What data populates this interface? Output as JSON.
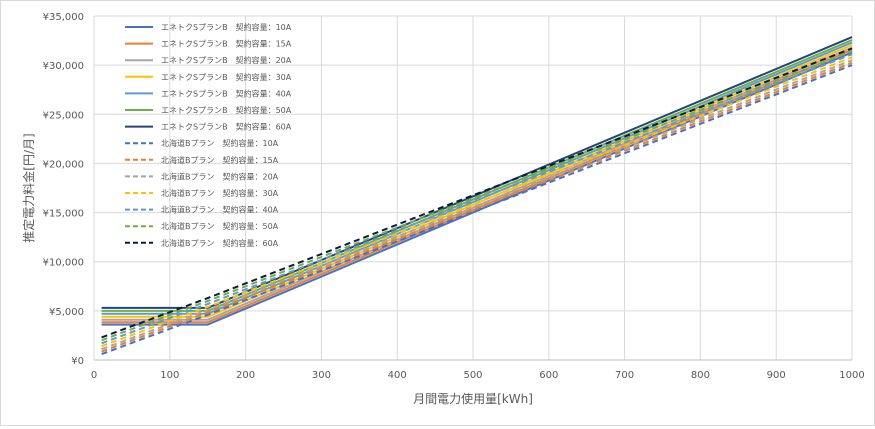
{
  "chart_data": {
    "type": "line",
    "title": "",
    "xlabel": "月間電力使用量[kWh]",
    "ylabel": "推定電力料金[円/月]",
    "xlim": [
      0,
      1000
    ],
    "ylim": [
      0,
      35000
    ],
    "x_ticks": [
      0,
      100,
      200,
      300,
      400,
      500,
      600,
      700,
      800,
      900,
      1000
    ],
    "y_ticks": [
      0,
      5000,
      10000,
      15000,
      20000,
      25000,
      30000,
      35000
    ],
    "x_tick_labels": [
      "0",
      "100",
      "200",
      "300",
      "400",
      "500",
      "600",
      "700",
      "800",
      "900",
      "1000"
    ],
    "y_tick_labels": [
      "¥0",
      "¥5,000",
      "¥10,000",
      "¥15,000",
      "¥20,000",
      "¥25,000",
      "¥30,000",
      "¥35,000"
    ],
    "grid": true,
    "legend_position": "top-left",
    "series": [
      {
        "name": "エネトクSプランB　契約容量：10A",
        "color": "#4472c4",
        "dash": false,
        "points": [
          [
            10,
            3600
          ],
          [
            150,
            3600
          ],
          [
            1000,
            31300
          ]
        ]
      },
      {
        "name": "エネトクSプランB　契約容量：15A",
        "color": "#ed7d31",
        "dash": false,
        "points": [
          [
            10,
            3850
          ],
          [
            150,
            3850
          ],
          [
            1000,
            31550
          ]
        ]
      },
      {
        "name": "エネトクSプランB　契約容量：20A",
        "color": "#a5a5a5",
        "dash": false,
        "points": [
          [
            10,
            4100
          ],
          [
            150,
            4100
          ],
          [
            1000,
            31800
          ]
        ]
      },
      {
        "name": "エネトクSプランB　契約容量：30A",
        "color": "#ffc000",
        "dash": false,
        "points": [
          [
            10,
            4400
          ],
          [
            150,
            4400
          ],
          [
            1000,
            32050
          ]
        ]
      },
      {
        "name": "エネトクSプランB　契約容量：40A",
        "color": "#5b9bd5",
        "dash": false,
        "points": [
          [
            10,
            4700
          ],
          [
            150,
            4700
          ],
          [
            1000,
            32300
          ]
        ]
      },
      {
        "name": "エネトクSプランB　契約容量：50A",
        "color": "#70ad47",
        "dash": false,
        "points": [
          [
            10,
            5000
          ],
          [
            150,
            5000
          ],
          [
            1000,
            32550
          ]
        ]
      },
      {
        "name": "エネトクSプランB　契約容量：60A",
        "color": "#264478",
        "dash": false,
        "points": [
          [
            10,
            5300
          ],
          [
            150,
            5300
          ],
          [
            1000,
            32850
          ]
        ]
      },
      {
        "name": "北海道Bプラン　契約容量：10A",
        "color": "#4472c4",
        "dash": true,
        "points": [
          [
            10,
            600
          ],
          [
            150,
            4600
          ],
          [
            1000,
            30000
          ]
        ]
      },
      {
        "name": "北海道Bプラン　契約容量：15A",
        "color": "#ed7d31",
        "dash": true,
        "points": [
          [
            10,
            850
          ],
          [
            150,
            4850
          ],
          [
            1000,
            30250
          ]
        ]
      },
      {
        "name": "北海道Bプラン　契約容量：20A",
        "color": "#a5a5a5",
        "dash": true,
        "points": [
          [
            10,
            1100
          ],
          [
            150,
            5100
          ],
          [
            1000,
            30500
          ]
        ]
      },
      {
        "name": "北海道Bプラン　契約容量：30A",
        "color": "#ffc000",
        "dash": true,
        "points": [
          [
            10,
            1400
          ],
          [
            150,
            5400
          ],
          [
            1000,
            30800
          ]
        ]
      },
      {
        "name": "北海道Bプラン　契約容量：40A",
        "color": "#5b9bd5",
        "dash": true,
        "points": [
          [
            10,
            1700
          ],
          [
            150,
            5700
          ],
          [
            1000,
            31100
          ]
        ]
      },
      {
        "name": "北海道Bプラン　契約容量：50A",
        "color": "#70ad47",
        "dash": true,
        "points": [
          [
            10,
            2000
          ],
          [
            150,
            6000
          ],
          [
            1000,
            31400
          ]
        ]
      },
      {
        "name": "北海道Bプラン　契約容量：60A",
        "color": "#0d1b3e",
        "dash": true,
        "points": [
          [
            10,
            2300
          ],
          [
            150,
            6300
          ],
          [
            1000,
            31700
          ]
        ]
      }
    ]
  }
}
